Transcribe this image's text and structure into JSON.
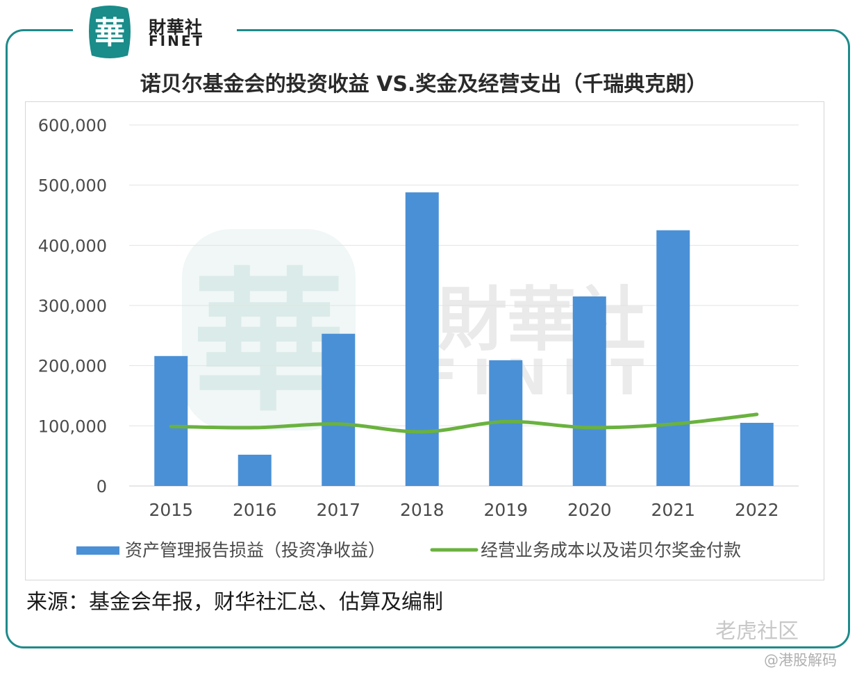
{
  "brand": {
    "logo_char": "華",
    "name_cn": "財華社",
    "name_en": "FINET"
  },
  "title": "诺贝尔基金会的投资收益 VS.奖金及经营支出（千瑞典克朗）",
  "source": "来源：基金会年报，财华社汇总、估算及编制",
  "watermarks": {
    "site": "老虎社区",
    "author": "@港股解码"
  },
  "chart_data": {
    "type": "bar",
    "categories": [
      "2015",
      "2016",
      "2017",
      "2018",
      "2019",
      "2020",
      "2021",
      "2022"
    ],
    "series": [
      {
        "name": "资产管理报告损益（投资净收益）",
        "type": "bar",
        "color": "#4a90d6",
        "values": [
          216000,
          52000,
          253000,
          488000,
          209000,
          315000,
          425000,
          105000
        ]
      },
      {
        "name": "经营业务成本以及诺贝尔奖金付款",
        "type": "line",
        "color": "#6ab23f",
        "values": [
          99000,
          97000,
          103000,
          90000,
          107000,
          97000,
          103000,
          119000
        ]
      }
    ],
    "ylim": [
      0,
      600000
    ],
    "yticks": [
      {
        "value": 0,
        "label": "0"
      },
      {
        "value": 100000,
        "label": "100,000"
      },
      {
        "value": 200000,
        "label": "200,000"
      },
      {
        "value": 300000,
        "label": "300,000"
      },
      {
        "value": 400000,
        "label": "400,000"
      },
      {
        "value": 500000,
        "label": "500,000"
      },
      {
        "value": 600000,
        "label": "600,000"
      }
    ],
    "grid": true,
    "legend_position": "bottom"
  }
}
